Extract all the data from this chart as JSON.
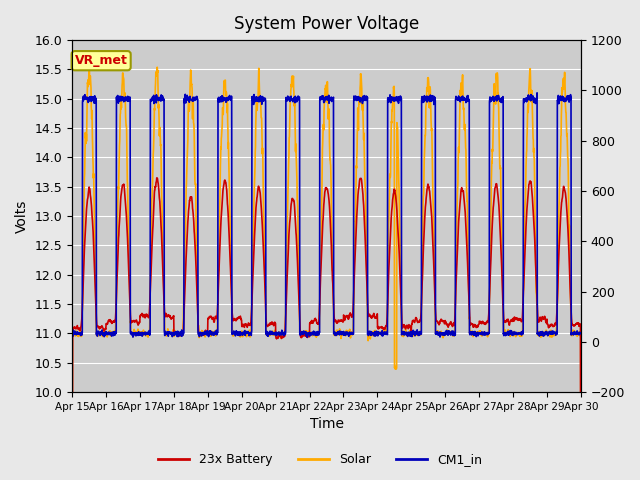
{
  "title": "System Power Voltage",
  "xlabel": "Time",
  "ylabel": "Volts",
  "ylim_left": [
    10.0,
    16.0
  ],
  "ylim_right": [
    -200,
    1200
  ],
  "yticks_left": [
    10.0,
    10.5,
    11.0,
    11.5,
    12.0,
    12.5,
    13.0,
    13.5,
    14.0,
    14.5,
    15.0,
    15.5,
    16.0
  ],
  "yticks_right": [
    -200,
    0,
    200,
    400,
    600,
    800,
    1000,
    1200
  ],
  "xtick_labels": [
    "Apr 15",
    "Apr 16",
    "Apr 17",
    "Apr 18",
    "Apr 19",
    "Apr 20",
    "Apr 21",
    "Apr 22",
    "Apr 23",
    "Apr 24",
    "Apr 25",
    "Apr 26",
    "Apr 27",
    "Apr 28",
    "Apr 29",
    "Apr 30"
  ],
  "fig_bg_color": "#e8e8e8",
  "plot_bg_color": "#cccccc",
  "grid_color": "#ffffff",
  "line_colors": {
    "battery": "#cc0000",
    "solar": "#ffaa00",
    "cm1": "#0000bb"
  },
  "line_widths": {
    "battery": 1.2,
    "solar": 1.2,
    "cm1": 1.2
  },
  "legend_labels": [
    "23x Battery",
    "Solar",
    "CM1_in"
  ],
  "annotation_text": "VR_met",
  "annotation_color": "#cc0000",
  "annotation_bg": "#ffff99",
  "annotation_border": "#999900"
}
